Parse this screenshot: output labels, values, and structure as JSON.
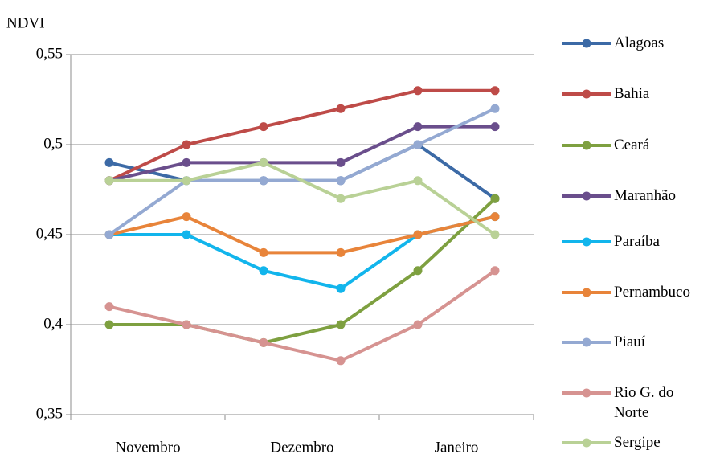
{
  "chart_data": {
    "type": "line",
    "y_label": "NDVI",
    "categories": [
      "Novembro",
      null,
      "Dezembro",
      null,
      "Janeiro",
      null
    ],
    "ylim": [
      0.35,
      0.55
    ],
    "yticks": [
      {
        "value": 0.35,
        "label": "0,35"
      },
      {
        "value": 0.4,
        "label": "0,4"
      },
      {
        "value": 0.45,
        "label": "0,45"
      },
      {
        "value": 0.5,
        "label": "0,5"
      },
      {
        "value": 0.55,
        "label": "0,55"
      }
    ],
    "grid": true,
    "legend": "right",
    "series": [
      {
        "name": "Alagoas",
        "color": "#3c6aa6",
        "values": [
          0.49,
          0.48,
          0.48,
          0.48,
          0.5,
          0.47
        ]
      },
      {
        "name": "Bahia",
        "color": "#be4b48",
        "values": [
          0.48,
          0.5,
          0.51,
          0.52,
          0.53,
          0.53
        ]
      },
      {
        "name": "Ceará",
        "color": "#7ea040",
        "values": [
          0.4,
          0.4,
          0.39,
          0.4,
          0.43,
          0.47
        ]
      },
      {
        "name": "Maranhão",
        "color": "#6a4e8c",
        "values": [
          0.48,
          0.49,
          0.49,
          0.49,
          0.51,
          0.51
        ]
      },
      {
        "name": "Paraíba",
        "color": "#12b5ec",
        "values": [
          0.45,
          0.45,
          0.43,
          0.42,
          0.45,
          0.46
        ]
      },
      {
        "name": "Pernambuco",
        "color": "#e8843a",
        "values": [
          0.45,
          0.46,
          0.44,
          0.44,
          0.45,
          0.46
        ]
      },
      {
        "name": "Piauí",
        "color": "#94a9d2",
        "values": [
          0.45,
          0.48,
          0.48,
          0.48,
          0.5,
          0.52
        ]
      },
      {
        "name": "Rio G. do Norte",
        "color": "#d69391",
        "values": [
          0.41,
          0.4,
          0.39,
          0.38,
          0.4,
          0.43
        ]
      },
      {
        "name": "Sergipe",
        "color": "#b9d196",
        "values": [
          0.48,
          0.48,
          0.49,
          0.47,
          0.48,
          0.45
        ]
      }
    ]
  }
}
